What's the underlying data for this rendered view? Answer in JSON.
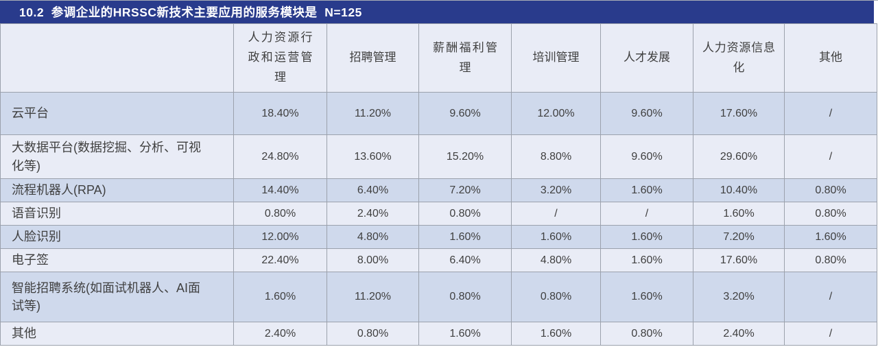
{
  "title_bar": {
    "text": "10.2  参调企业的HRSSC新技术主要应用的服务模块是  N=125"
  },
  "chart_data": {
    "type": "table",
    "figure_number": "10.2",
    "title": "参调企业的HRSSC新技术主要应用的服务模块是",
    "sample_size": "N=125",
    "columns": [
      "人力资源行政和运营管理",
      "招聘管理",
      "薪酬福利管理",
      "培训管理",
      "人才发展",
      "人力资源信息化",
      "其他"
    ],
    "rows": [
      {
        "label": "云平台",
        "values": [
          "18.40%",
          "11.20%",
          "9.60%",
          "12.00%",
          "9.60%",
          "17.60%",
          "/"
        ]
      },
      {
        "label": "大数据平台(数据挖掘、分析、可视化等)",
        "values": [
          "24.80%",
          "13.60%",
          "15.20%",
          "8.80%",
          "9.60%",
          "29.60%",
          "/"
        ]
      },
      {
        "label": "流程机器人(RPA)",
        "values": [
          "14.40%",
          "6.40%",
          "7.20%",
          "3.20%",
          "1.60%",
          "10.40%",
          "0.80%"
        ]
      },
      {
        "label": "语音识别",
        "values": [
          "0.80%",
          "2.40%",
          "0.80%",
          "/",
          "/",
          "1.60%",
          "0.80%"
        ]
      },
      {
        "label": "人脸识别",
        "values": [
          "12.00%",
          "4.80%",
          "1.60%",
          "1.60%",
          "1.60%",
          "7.20%",
          "1.60%"
        ]
      },
      {
        "label": "电子签",
        "values": [
          "22.40%",
          "8.00%",
          "6.40%",
          "4.80%",
          "1.60%",
          "17.60%",
          "0.80%"
        ]
      },
      {
        "label": "智能招聘系统(如面试机器人、AI面试等)",
        "values": [
          "1.60%",
          "11.20%",
          "0.80%",
          "0.80%",
          "1.60%",
          "3.20%",
          "/"
        ]
      },
      {
        "label": "其他",
        "values": [
          "2.40%",
          "0.80%",
          "1.60%",
          "1.60%",
          "0.80%",
          "2.40%",
          "/"
        ]
      }
    ]
  },
  "colors": {
    "title_bar_bg": "#293b8c",
    "title_text": "#ffffff",
    "row_dark_bg": "#cfd9ec",
    "row_light_bg": "#e9ecf6",
    "grid_border": "#9ba1ac",
    "cell_text": "#3f3f3f"
  }
}
